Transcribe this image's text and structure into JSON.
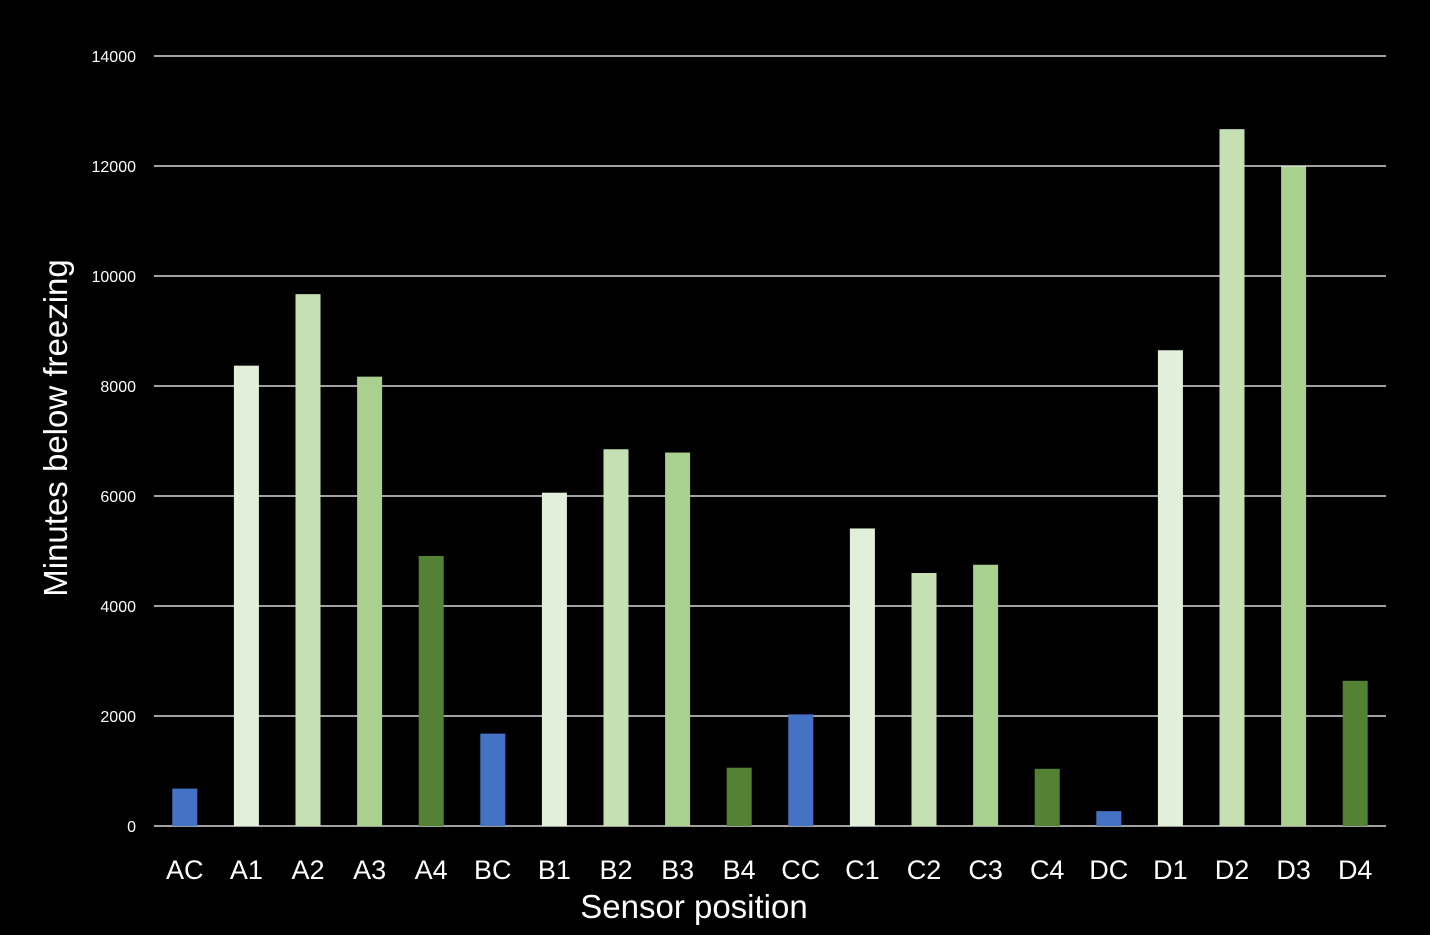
{
  "chart_data": {
    "type": "bar",
    "title": "",
    "xlabel": "Sensor position",
    "ylabel": "Minutes below freezing",
    "ylim": [
      0,
      14000
    ],
    "yticks": [
      0,
      2000,
      4000,
      6000,
      8000,
      10000,
      12000,
      14000
    ],
    "grid": true,
    "legend": "none",
    "categories": [
      "AC",
      "A1",
      "A2",
      "A3",
      "A4",
      "BC",
      "B1",
      "B2",
      "B3",
      "B4",
      "CC",
      "C1",
      "C2",
      "C3",
      "C4",
      "DC",
      "D1",
      "D2",
      "D3",
      "D4"
    ],
    "values": [
      680,
      8370,
      9670,
      8170,
      4910,
      1680,
      6060,
      6850,
      6790,
      1060,
      2030,
      5410,
      4600,
      4750,
      1040,
      270,
      8650,
      12670,
      11990,
      2640
    ],
    "bar_colors": [
      "#4472c4",
      "#e2efda",
      "#c6e0b4",
      "#a9d08e",
      "#548235",
      "#4472c4",
      "#e2efda",
      "#c6e0b4",
      "#a9d08e",
      "#548235",
      "#4472c4",
      "#e2efda",
      "#c6e0b4",
      "#a9d08e",
      "#548235",
      "#4472c4",
      "#e2efda",
      "#c6e0b4",
      "#a9d08e",
      "#548235"
    ]
  }
}
